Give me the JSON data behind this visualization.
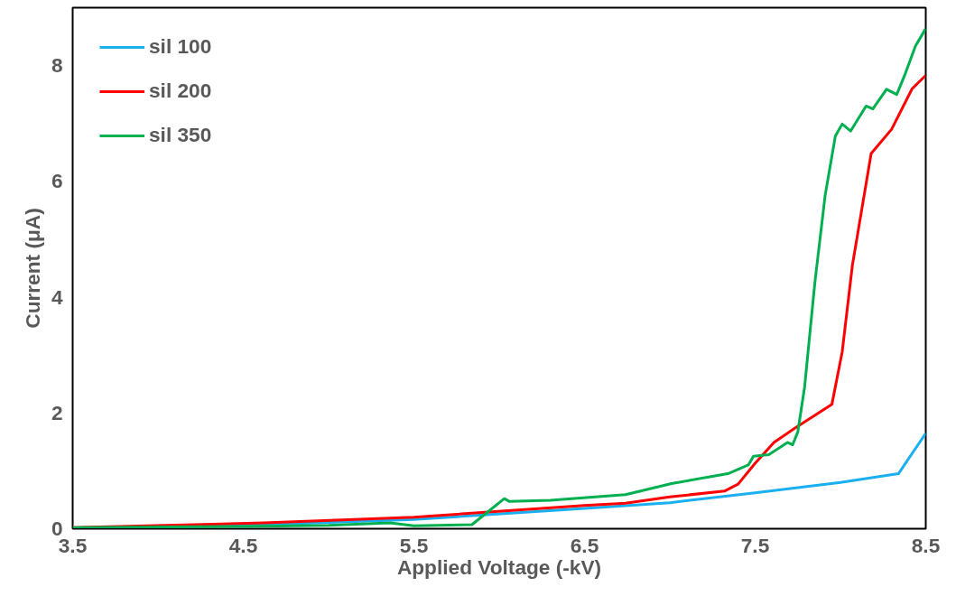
{
  "chart_data": {
    "type": "line",
    "xlabel": "Applied Voltage (-kV)",
    "ylabel": "Current (μA)",
    "xlim": [
      3.5,
      8.5
    ],
    "xticks": [
      3.5,
      4.5,
      5.5,
      6.5,
      7.5,
      8.5
    ],
    "ylim": [
      0,
      9
    ],
    "yticks": [
      0,
      2,
      4,
      6,
      8
    ],
    "grid": false,
    "legend": "top left",
    "marker": "none",
    "line_style": "solid",
    "series": [
      {
        "name": "sil 100",
        "color": "#1ab0f0",
        "x": [
          3.5,
          4.5,
          5.5,
          6.5,
          7.0,
          7.5,
          8.0,
          8.34,
          8.5
        ],
        "values": [
          0.0,
          0.06,
          0.16,
          0.35,
          0.45,
          0.62,
          0.8,
          0.95,
          1.65
        ]
      },
      {
        "name": "sil 200",
        "color": "#ff0000",
        "x": [
          3.5,
          4.62,
          5.5,
          6.5,
          6.74,
          7.0,
          7.32,
          7.4,
          7.5,
          7.61,
          7.73,
          7.95,
          8.01,
          8.07,
          8.18,
          8.3,
          8.42,
          8.5
        ],
        "values": [
          0.02,
          0.1,
          0.2,
          0.4,
          0.44,
          0.55,
          0.65,
          0.77,
          1.13,
          1.49,
          1.73,
          2.15,
          3.05,
          4.55,
          6.48,
          6.9,
          7.6,
          7.83
        ]
      },
      {
        "name": "sil 350",
        "color": "#00b050",
        "x": [
          3.5,
          4.5,
          5.0,
          5.36,
          5.5,
          5.84,
          6.03,
          6.06,
          6.3,
          6.74,
          7.01,
          7.34,
          7.46,
          7.49,
          7.58,
          7.69,
          7.72,
          7.75,
          7.79,
          7.85,
          7.91,
          7.97,
          8.01,
          8.06,
          8.15,
          8.19,
          8.27,
          8.33,
          8.38,
          8.44,
          8.5
        ],
        "values": [
          0.02,
          0.04,
          0.06,
          0.1,
          0.05,
          0.07,
          0.52,
          0.47,
          0.49,
          0.59,
          0.78,
          0.95,
          1.1,
          1.25,
          1.28,
          1.49,
          1.45,
          1.67,
          2.45,
          4.25,
          5.75,
          6.78,
          6.99,
          6.87,
          7.3,
          7.25,
          7.59,
          7.5,
          7.86,
          8.34,
          8.64
        ]
      }
    ]
  }
}
